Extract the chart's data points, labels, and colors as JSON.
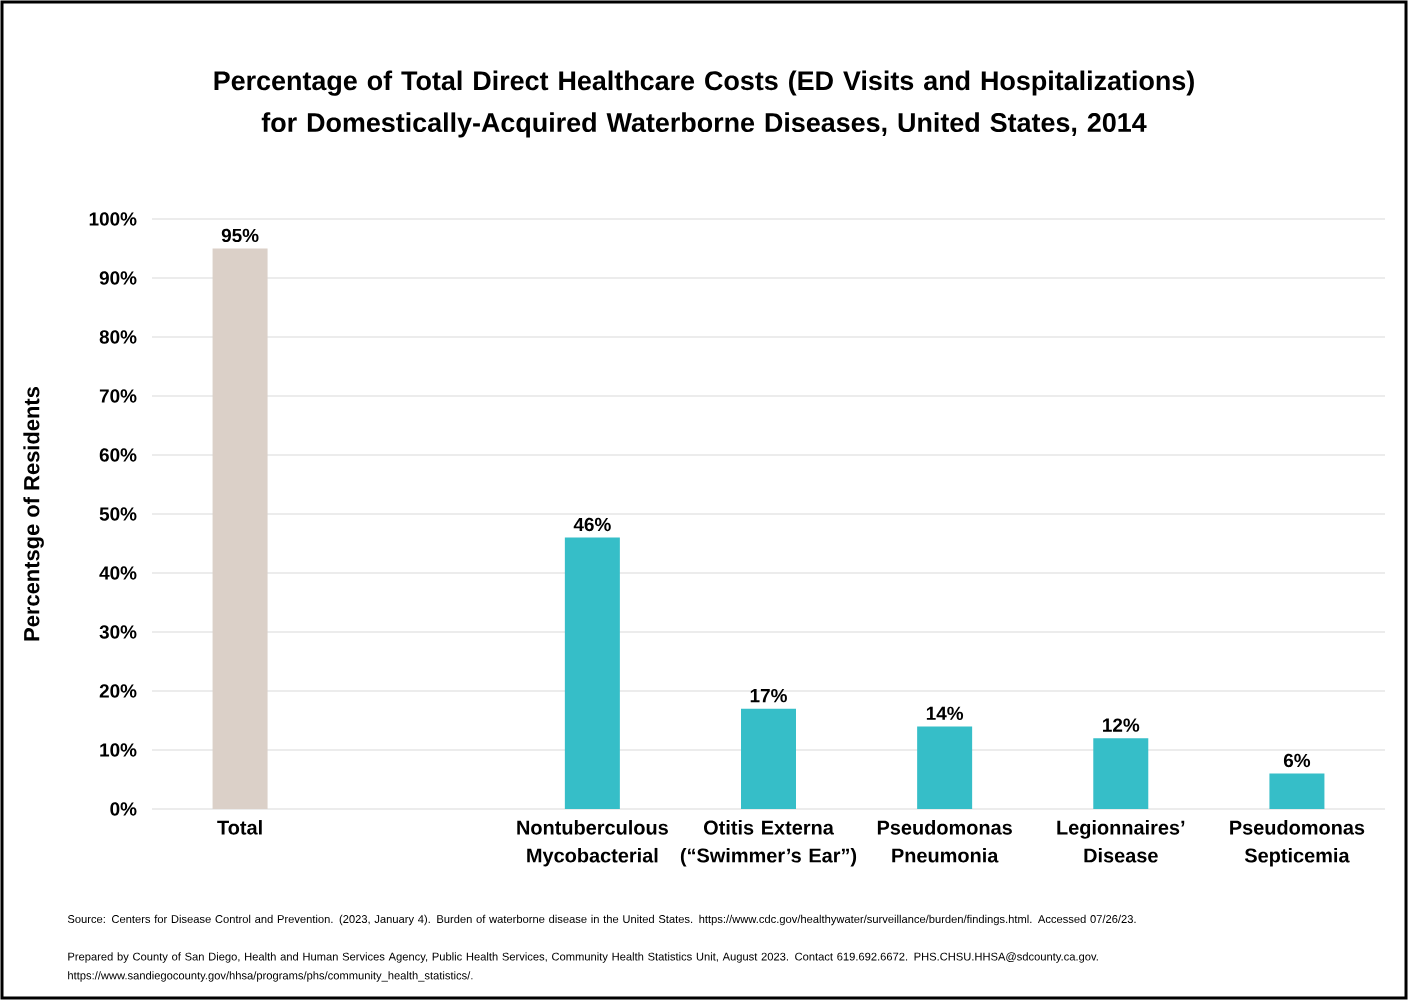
{
  "chart_data": {
    "type": "bar",
    "title": "Percentage of Total Direct Healthcare Costs (ED Visits and Hospitalizations) for Domestically-Acquired Waterborne Diseases, United States, 2014",
    "ylabel": "Percentsge of Residents",
    "categories": [
      "Total",
      null,
      "Nontuberculous Mycobacterial",
      "Otitis Externa (“Swimmer’s Ear”)",
      "Pseudomonas Pneumonia",
      "Legionnaires’ Disease",
      "Pseudomonas Septicemia"
    ],
    "values": [
      95,
      null,
      46,
      17,
      14,
      12,
      6
    ],
    "value_labels": [
      "95%",
      null,
      "46%",
      "17%",
      "14%",
      "12%",
      "6%"
    ],
    "colors": [
      "#dbd0c8",
      "#36bec8",
      "#36bec8",
      "#36bec8",
      "#36bec8",
      "#36bec8",
      "#36bec8"
    ],
    "ylim": [
      0,
      100
    ],
    "yticks": [
      {
        "value": 0,
        "label": "0%"
      },
      {
        "value": 10,
        "label": "10%"
      },
      {
        "value": 20,
        "label": "20%"
      },
      {
        "value": 30,
        "label": "30%"
      },
      {
        "value": 40,
        "label": "40%"
      },
      {
        "value": 50,
        "label": "50%"
      },
      {
        "value": 60,
        "label": "60%"
      },
      {
        "value": 70,
        "label": "70%"
      },
      {
        "value": 80,
        "label": "80%"
      },
      {
        "value": 90,
        "label": "90%"
      },
      {
        "value": 100,
        "label": "100%"
      }
    ],
    "grid": "y",
    "annotations": [
      "Source: Centers for Disease Control and Prevention. (2023, January 4). Burden of waterborne disease in the United States. https://www.cdc.gov/healthywater/surveillance/burden/findings.html. Accessed 07/26/23.",
      "Prepared by County of San Diego, Health and Human Services Agency, Public Health Services, Community Health Statistics Unit, August 2023. Contact 619.692.6672. PHS.CHSU.HHSA@sdcounty.ca.gov. https://www.sandiegocounty.gov/hhsa/programs/phs/community_health_statistics/."
    ]
  }
}
